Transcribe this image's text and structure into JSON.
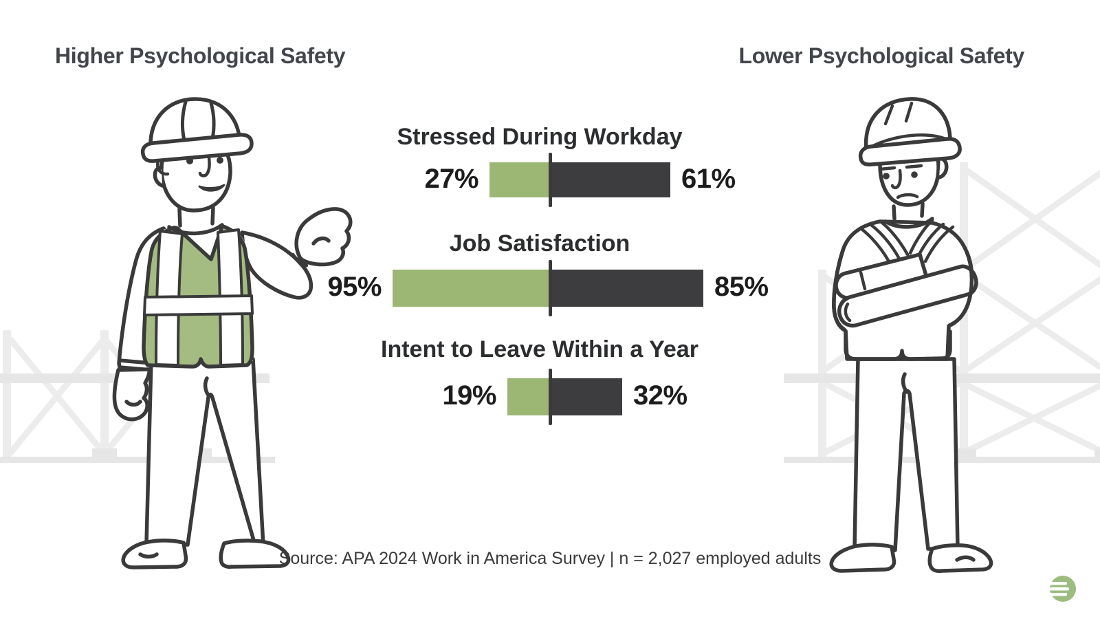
{
  "titles": {
    "left": "Higher Psychological Safety",
    "right": "Lower Psychological Safety"
  },
  "chart_data": {
    "type": "bar",
    "orientation": "diverging-horizontal",
    "categories": [
      "Stressed During Workday",
      "Job Satisfaction",
      "Intent to Leave Within a Year"
    ],
    "series": [
      {
        "name": "Higher Psychological Safety",
        "color": "#9cb674",
        "values": [
          27,
          95,
          19
        ]
      },
      {
        "name": "Lower Psychological Safety",
        "color": "#3d3c3e",
        "values": [
          61,
          85,
          32
        ]
      }
    ],
    "value_format": "percent",
    "legend": "none",
    "grid": false
  },
  "source": "Source: APA 2024 Work in America Survey | n = 2,027 employed adults",
  "figures": {
    "left_alt": "construction worker in green safety vest gesturing with open hand",
    "right_alt": "construction worker with arms crossed"
  },
  "colors": {
    "green": "#9cb674",
    "dark": "#3d3c3e",
    "outline": "#3a3a3a",
    "scaffold": "#ececec"
  },
  "logo": {
    "name": "green-circle-logo-with-three-bars",
    "color": "#9dbc80"
  }
}
